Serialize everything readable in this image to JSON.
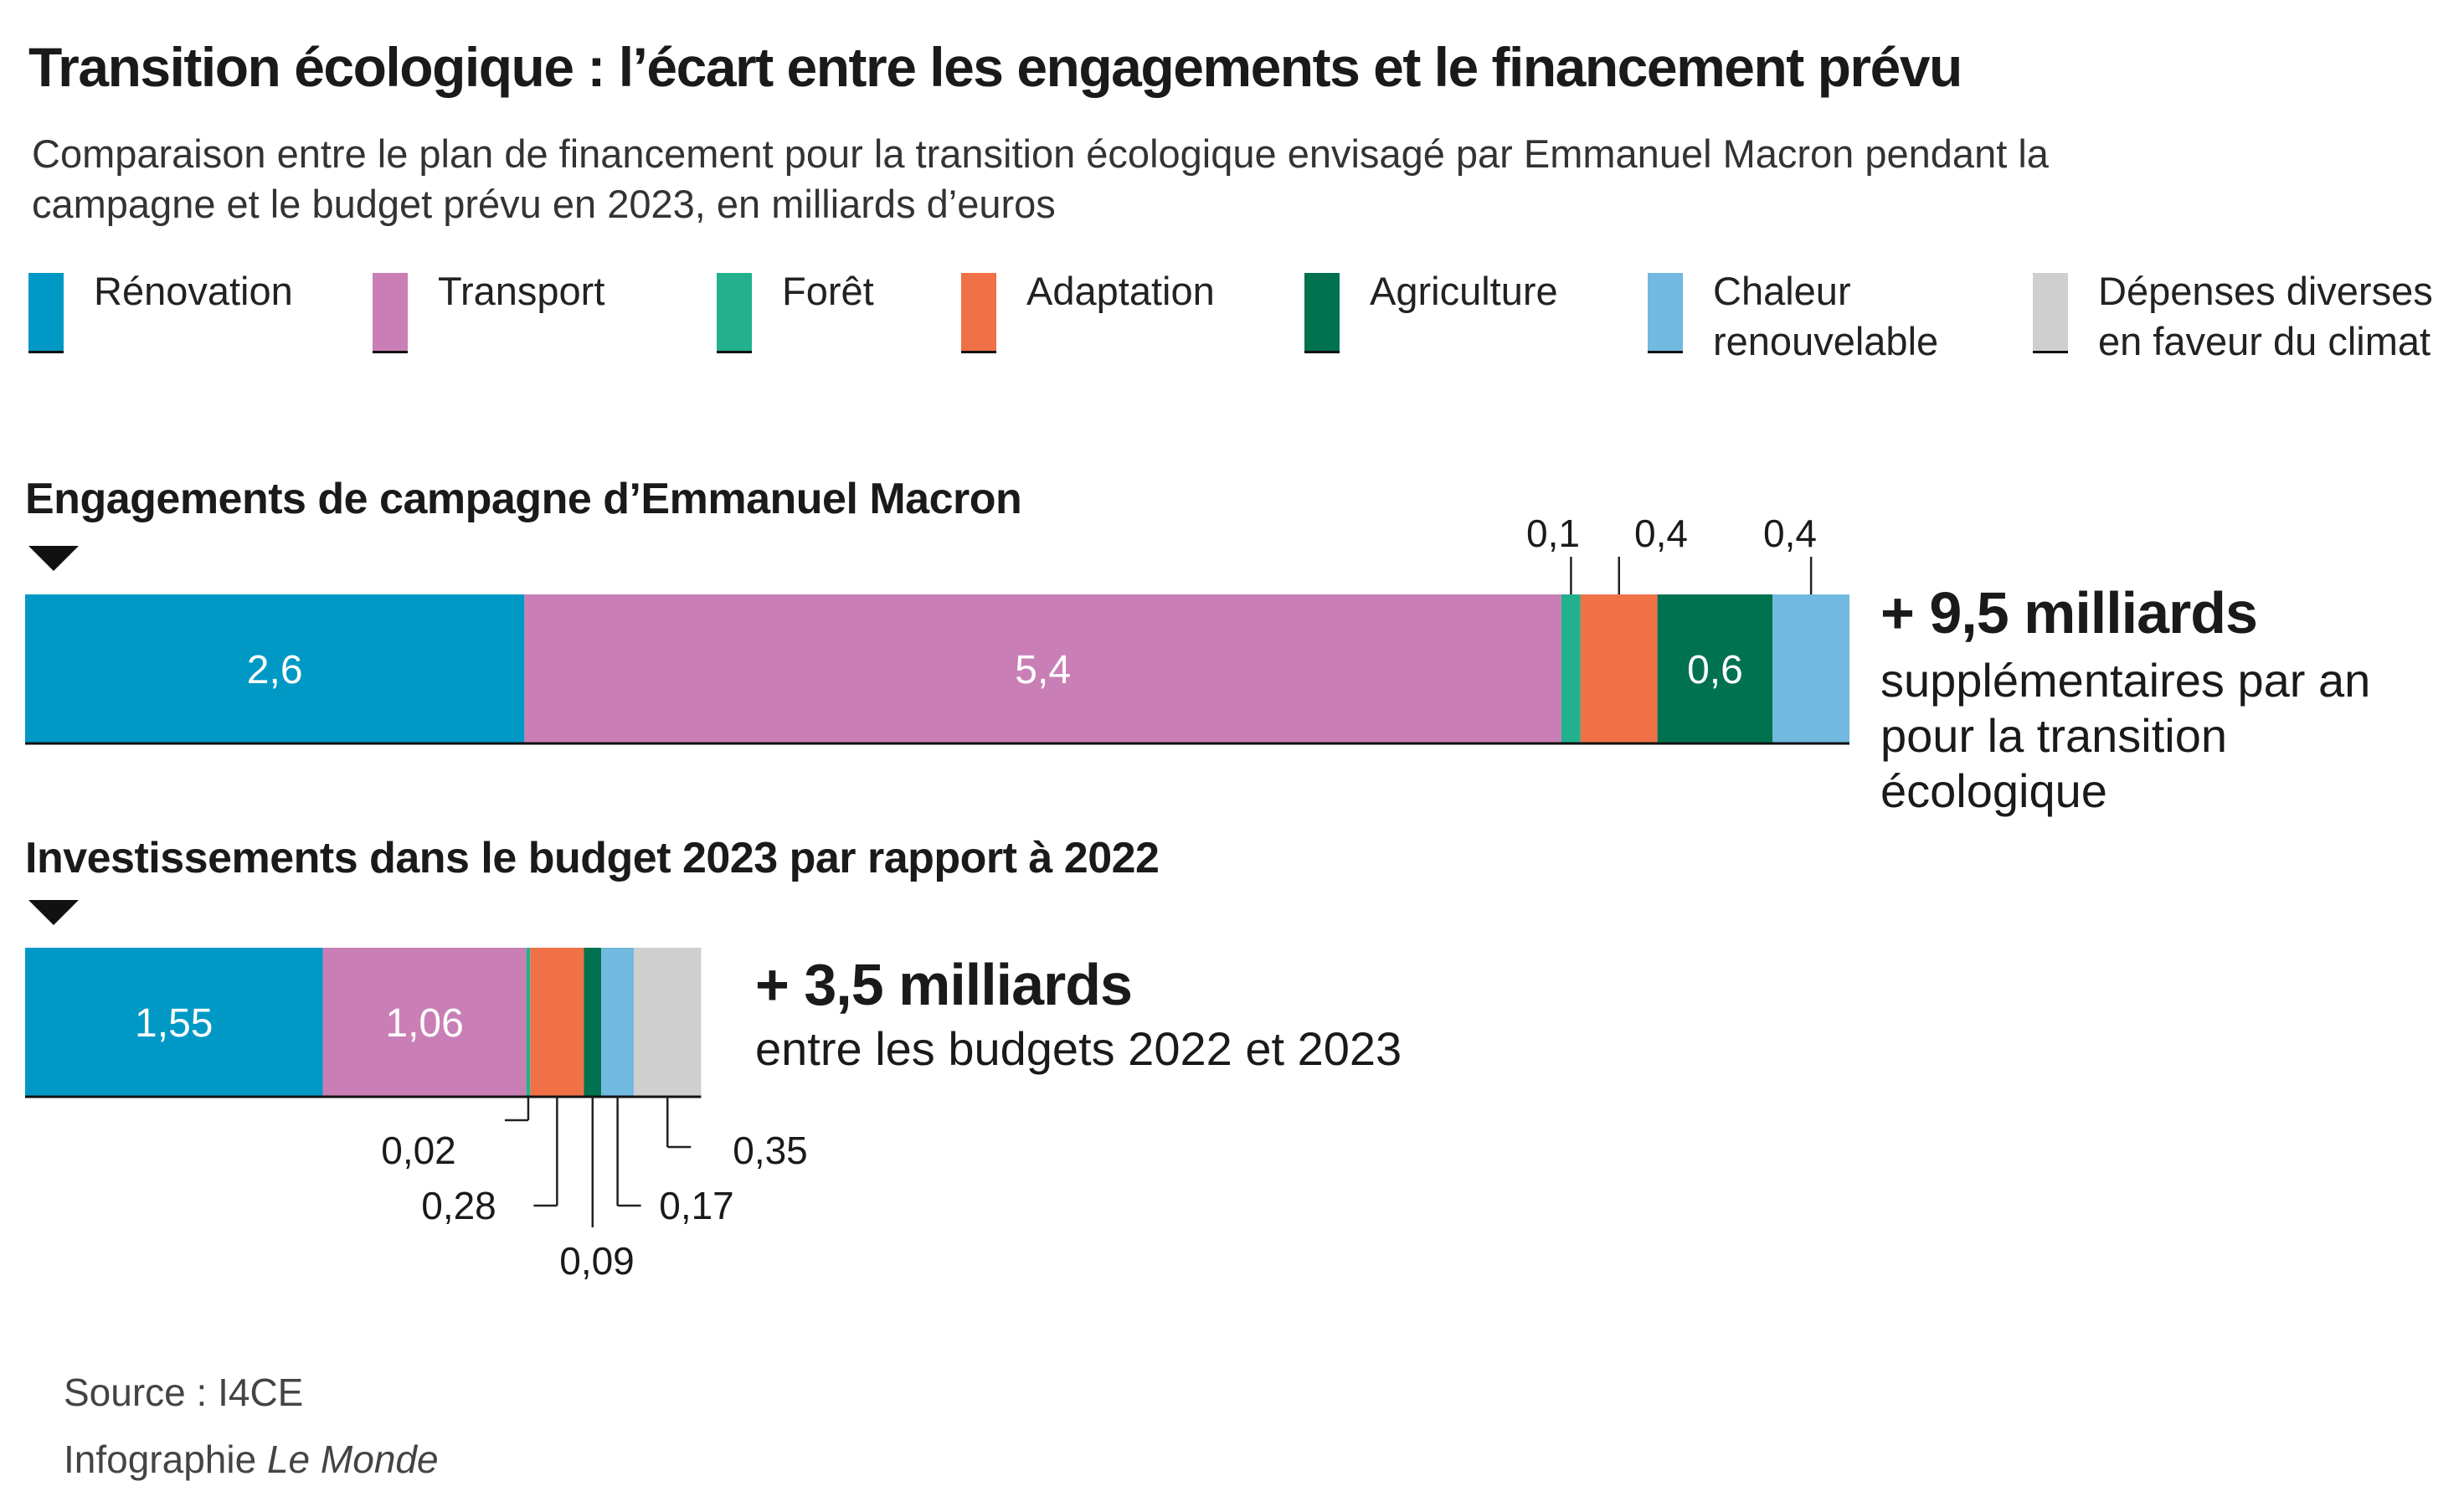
{
  "title": "Transition écologique : l’écart entre les engagements et le financement prévu",
  "subtitle": "Comparaison entre le plan de financement pour la transition écologique envisagé par Emmanuel Macron pendant la campagne et le budget prévu en 2023, en milliards d’euros",
  "colors": {
    "renovation": "#0099c6",
    "transport": "#c97fb6",
    "foret": "#23b08d",
    "adaptation": "#ef7145",
    "agriculture": "#00724f",
    "chaleur": "#71b9de",
    "depenses": "#cfcfcf"
  },
  "legend": [
    {
      "key": "renovation",
      "label": "Rénovation"
    },
    {
      "key": "transport",
      "label": "Transport"
    },
    {
      "key": "foret",
      "label": "Forêt"
    },
    {
      "key": "adaptation",
      "label": "Adaptation"
    },
    {
      "key": "agriculture",
      "label": "Agriculture"
    },
    {
      "key": "chaleur",
      "label": "Chaleur renouvelable"
    },
    {
      "key": "depenses",
      "label": "Dépenses diverses en faveur du climat"
    }
  ],
  "chart_data": [
    {
      "type": "bar",
      "orientation": "horizontal-stacked",
      "title": "Engagements de campagne d’Emmanuel Macron",
      "categories": [
        "Rénovation",
        "Transport",
        "Forêt",
        "Adaptation",
        "Agriculture",
        "Chaleur renouvelable"
      ],
      "values": [
        2.6,
        5.4,
        0.1,
        0.4,
        0.6,
        0.4
      ],
      "labels": [
        "2,6",
        "5,4",
        "0,1",
        "0,4",
        "0,6",
        "0,4"
      ],
      "total_label": "+ 9,5 milliards",
      "total_text": "supplémentaires par an pour la transition écologique"
    },
    {
      "type": "bar",
      "orientation": "horizontal-stacked",
      "title": "Investissements dans le budget 2023 par rapport à 2022",
      "categories": [
        "Rénovation",
        "Transport",
        "Forêt",
        "Adaptation",
        "Agriculture",
        "Chaleur renouvelable",
        "Dépenses diverses en faveur du climat"
      ],
      "values": [
        1.55,
        1.06,
        0.02,
        0.28,
        0.09,
        0.17,
        0.35
      ],
      "labels": [
        "1,55",
        "1,06",
        "0,02",
        "0,28",
        "0,09",
        "0,17",
        "0,35"
      ],
      "total_label": "+ 3,5 milliards",
      "total_text": "entre les budgets 2022 et 2023"
    }
  ],
  "source": {
    "line1": "Source : I4CE",
    "credit_prefix": "Infographie ",
    "credit_name": "Le Monde"
  }
}
